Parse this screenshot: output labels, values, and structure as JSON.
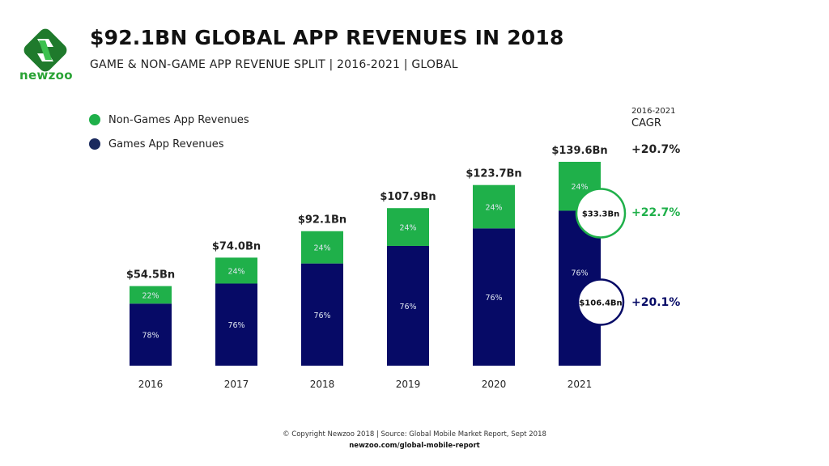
{
  "brand": {
    "name": "newzoo",
    "green": "#2aa335",
    "dark_green": "#1f7a2c"
  },
  "header": {
    "title": "$92.1BN GLOBAL APP REVENUES IN 2018",
    "subtitle": "GAME & NON-GAME APP REVENUE SPLIT | 2016-2021 | GLOBAL"
  },
  "cagr": {
    "period": "2016-2021",
    "label": "CAGR",
    "total": "+20.7%",
    "non_games": "+22.7%",
    "games": "+20.1%"
  },
  "footer": {
    "copyright": "© Copyright Newzoo 2018 | Source: Global Mobile Market Report, Sept 2018",
    "url": "newzoo.com/global-mobile-report"
  },
  "chart_data": {
    "type": "bar",
    "stacked": true,
    "title": "$92.1BN GLOBAL APP REVENUES IN 2018",
    "subtitle": "GAME & NON-GAME APP REVENUE SPLIT | 2016-2021 | GLOBAL",
    "xlabel": "",
    "ylabel": "",
    "units": "Bn USD",
    "ylim": [
      0,
      139.6
    ],
    "grid": false,
    "legend_position": "top-left",
    "categories": [
      "2016",
      "2017",
      "2018",
      "2019",
      "2020",
      "2021"
    ],
    "totals": [
      54.5,
      74.0,
      92.1,
      107.9,
      123.7,
      139.6
    ],
    "total_labels": [
      "$54.5Bn",
      "$74.0Bn",
      "$92.1Bn",
      "$107.9Bn",
      "$123.7Bn",
      "$139.6Bn"
    ],
    "series": [
      {
        "name": "Games App Revenues",
        "color": "#060a66",
        "legend_color": "#1b2a5e",
        "share_pct": [
          78,
          76,
          76,
          76,
          76,
          76
        ],
        "share_labels": [
          "78%",
          "76%",
          "76%",
          "76%",
          "76%",
          "76%"
        ]
      },
      {
        "name": "Non-Games App Revenues",
        "color": "#1fb04a",
        "legend_color": "#1fb04a",
        "share_pct": [
          22,
          24,
          24,
          24,
          24,
          24
        ],
        "share_labels": [
          "22%",
          "24%",
          "24%",
          "24%",
          "24%",
          "24%"
        ]
      }
    ],
    "annotations": [
      {
        "category": "2021",
        "series": "Non-Games App Revenues",
        "text": "$33.3Bn",
        "ring_color": "#1fb04a"
      },
      {
        "category": "2021",
        "series": "Games App Revenues",
        "text": "$106.4Bn",
        "ring_color": "#060a66"
      }
    ]
  }
}
